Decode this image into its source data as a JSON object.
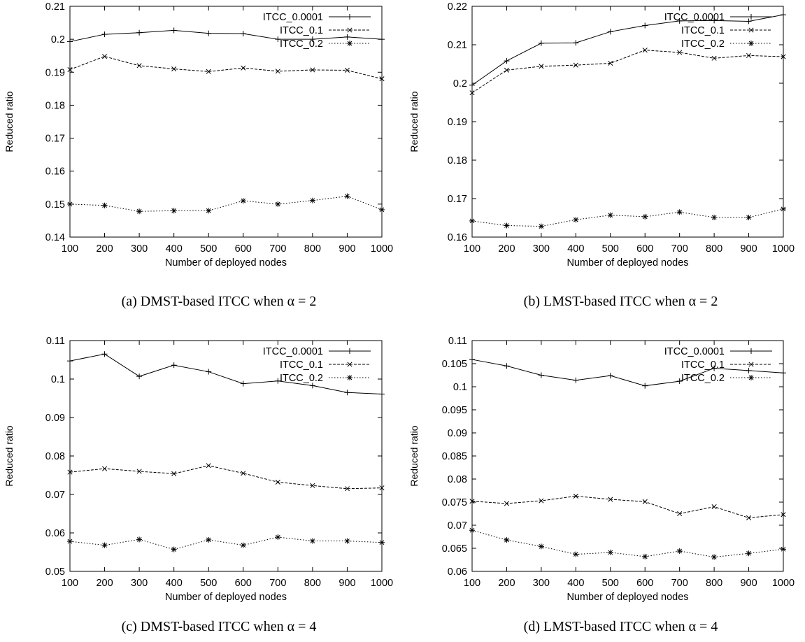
{
  "chart_data": [
    {
      "type": "line",
      "id": "a",
      "caption": "(a) DMST-based ITCC when α = 2",
      "xlabel": "Number of deployed nodes",
      "ylabel": "Reduced ratio",
      "x": [
        100,
        200,
        300,
        400,
        500,
        600,
        700,
        800,
        900,
        1000
      ],
      "xticks": [
        "100",
        "200",
        "300",
        "400",
        "500",
        "600",
        "700",
        "800",
        "900",
        "1000"
      ],
      "ylim": [
        0.14,
        0.21
      ],
      "yticks": [
        "0.14",
        "0.15",
        "0.16",
        "0.17",
        "0.18",
        "0.19",
        "0.2",
        "0.21"
      ],
      "legend_position": "top-right",
      "series": [
        {
          "name": "ITCC_0.0001",
          "values": [
            0.1993,
            0.2015,
            0.202,
            0.2027,
            0.2018,
            0.2017,
            0.2,
            0.2,
            0.2007,
            0.2
          ]
        },
        {
          "name": "ITCC_0.1",
          "values": [
            0.1908,
            0.1948,
            0.192,
            0.191,
            0.1902,
            0.1913,
            0.1903,
            0.1907,
            0.1906,
            0.188
          ]
        },
        {
          "name": "ITCC_0.2",
          "values": [
            0.15,
            0.1496,
            0.1478,
            0.148,
            0.148,
            0.151,
            0.15,
            0.1511,
            0.1524,
            0.1483
          ]
        }
      ]
    },
    {
      "type": "line",
      "id": "b",
      "caption": "(b) LMST-based ITCC when α = 2",
      "xlabel": "Number of deployed nodes",
      "ylabel": "Reduced ratio",
      "x": [
        100,
        200,
        300,
        400,
        500,
        600,
        700,
        800,
        900,
        1000
      ],
      "xticks": [
        "100",
        "200",
        "300",
        "400",
        "500",
        "600",
        "700",
        "800",
        "900",
        "1000"
      ],
      "ylim": [
        0.16,
        0.22
      ],
      "yticks": [
        "0.16",
        "0.17",
        "0.18",
        "0.19",
        "0.2",
        "0.21",
        "0.22"
      ],
      "legend_position": "top-right",
      "series": [
        {
          "name": "ITCC_0.0001",
          "values": [
            0.1995,
            0.2058,
            0.2104,
            0.2105,
            0.2134,
            0.215,
            0.2162,
            0.2163,
            0.2161,
            0.2178
          ]
        },
        {
          "name": "ITCC_0.1",
          "values": [
            0.1975,
            0.2034,
            0.2044,
            0.2047,
            0.2052,
            0.2086,
            0.208,
            0.2065,
            0.2072,
            0.2069
          ]
        },
        {
          "name": "ITCC_0.2",
          "values": [
            0.1642,
            0.163,
            0.1628,
            0.1645,
            0.1657,
            0.1653,
            0.1665,
            0.1651,
            0.1651,
            0.1673
          ]
        }
      ]
    },
    {
      "type": "line",
      "id": "c",
      "caption": "(c) DMST-based ITCC when α = 4",
      "xlabel": "Number of deployed nodes",
      "ylabel": "Reduced ratio",
      "x": [
        100,
        200,
        300,
        400,
        500,
        600,
        700,
        800,
        900,
        1000
      ],
      "xticks": [
        "100",
        "200",
        "300",
        "400",
        "500",
        "600",
        "700",
        "800",
        "900",
        "1000"
      ],
      "ylim": [
        0.05,
        0.11
      ],
      "yticks": [
        "0.05",
        "0.06",
        "0.07",
        "0.08",
        "0.09",
        "0.1",
        "0.11"
      ],
      "legend_position": "top-right",
      "series": [
        {
          "name": "ITCC_0.0001",
          "values": [
            0.1047,
            0.1065,
            0.1007,
            0.1036,
            0.1019,
            0.0988,
            0.0995,
            0.0983,
            0.0965,
            0.0961
          ]
        },
        {
          "name": "ITCC_0.1",
          "values": [
            0.0758,
            0.0767,
            0.076,
            0.0754,
            0.0775,
            0.0755,
            0.0732,
            0.0723,
            0.0715,
            0.0717
          ]
        },
        {
          "name": "ITCC_0.2",
          "values": [
            0.0578,
            0.0568,
            0.0583,
            0.0557,
            0.0582,
            0.0568,
            0.0589,
            0.0579,
            0.0579,
            0.0575
          ]
        }
      ]
    },
    {
      "type": "line",
      "id": "d",
      "caption": "(d) LMST-based ITCC when α = 4",
      "xlabel": "Number of deployed nodes",
      "ylabel": "Reduced ratio",
      "x": [
        100,
        200,
        300,
        400,
        500,
        600,
        700,
        800,
        900,
        1000
      ],
      "xticks": [
        "100",
        "200",
        "300",
        "400",
        "500",
        "600",
        "700",
        "800",
        "900",
        "1000"
      ],
      "ylim": [
        0.06,
        0.11
      ],
      "yticks": [
        "0.06",
        "0.065",
        "0.07",
        "0.075",
        "0.08",
        "0.085",
        "0.09",
        "0.095",
        "0.1",
        "0.105",
        "0.11"
      ],
      "legend_position": "top-right",
      "series": [
        {
          "name": "ITCC_0.0001",
          "values": [
            0.1059,
            0.1045,
            0.1025,
            0.1014,
            0.1024,
            0.1002,
            0.1012,
            0.104,
            0.1035,
            0.103
          ]
        },
        {
          "name": "ITCC_0.1",
          "values": [
            0.0752,
            0.0747,
            0.0753,
            0.0763,
            0.0756,
            0.0751,
            0.0725,
            0.074,
            0.0716,
            0.0723
          ]
        },
        {
          "name": "ITCC_0.2",
          "values": [
            0.0689,
            0.0668,
            0.0654,
            0.0637,
            0.0641,
            0.0632,
            0.0644,
            0.0631,
            0.0639,
            0.0648
          ]
        }
      ]
    }
  ]
}
